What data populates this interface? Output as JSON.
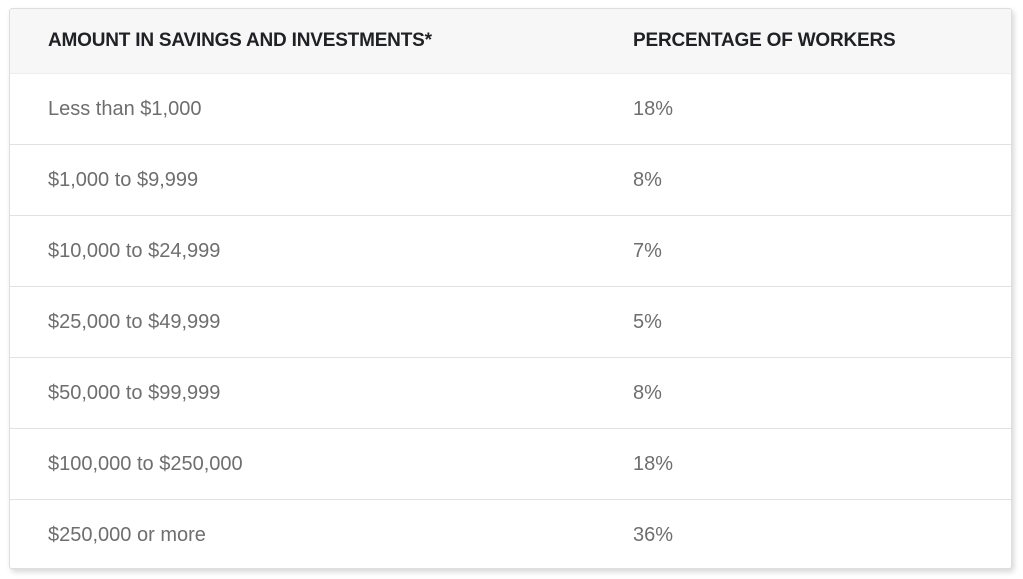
{
  "chart_data": {
    "type": "table",
    "title": "",
    "columns": [
      "AMOUNT IN SAVINGS AND INVESTMENTS*",
      "PERCENTAGE OF WORKERS"
    ],
    "categories": [
      "Less than $1,000",
      "$1,000 to $9,999",
      "$10,000 to $24,999",
      "$25,000 to $49,999",
      "$50,000 to $99,999",
      "$100,000 to $250,000",
      "$250,000 or more"
    ],
    "values": [
      18,
      8,
      7,
      5,
      8,
      18,
      36
    ],
    "rows": [
      [
        "Less than $1,000",
        "18%"
      ],
      [
        "$1,000 to $9,999",
        "8%"
      ],
      [
        "$10,000 to $24,999",
        "7%"
      ],
      [
        "$25,000 to $49,999",
        "5%"
      ],
      [
        "$50,000 to $99,999",
        "8%"
      ],
      [
        "$100,000 to $250,000",
        "18%"
      ],
      [
        "$250,000 or more",
        "36%"
      ]
    ]
  },
  "colors": {
    "header_background": "#f7f7f7",
    "header_text": "#202124",
    "body_text": "#6e6e6e",
    "row_divider": "#e2e2e2",
    "card_border": "#dedede",
    "page_background": "#ffffff"
  }
}
